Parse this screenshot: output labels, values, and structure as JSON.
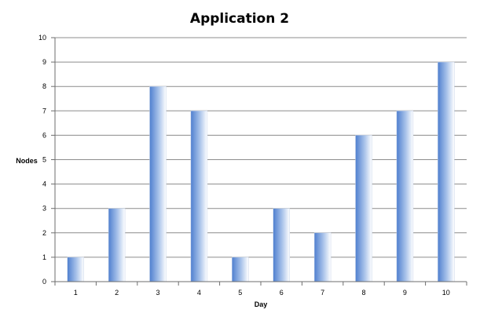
{
  "chart_data": {
    "type": "bar",
    "title": "Application 2",
    "xlabel": "Day",
    "ylabel": "Nodes",
    "categories": [
      "1",
      "2",
      "3",
      "4",
      "5",
      "6",
      "7",
      "8",
      "9",
      "10"
    ],
    "values": [
      1,
      3,
      8,
      7,
      1,
      3,
      2,
      6,
      7,
      9
    ],
    "ylim": [
      0,
      10
    ],
    "yticks": [
      "0",
      "1",
      "2",
      "3",
      "4",
      "5",
      "6",
      "7",
      "8",
      "9",
      "10"
    ],
    "grid": true,
    "legend": "none",
    "colors": {
      "bar_dark": "#4f7fcf",
      "bar_mid": "#a9c3ea",
      "bar_light": "#ffffff"
    }
  }
}
